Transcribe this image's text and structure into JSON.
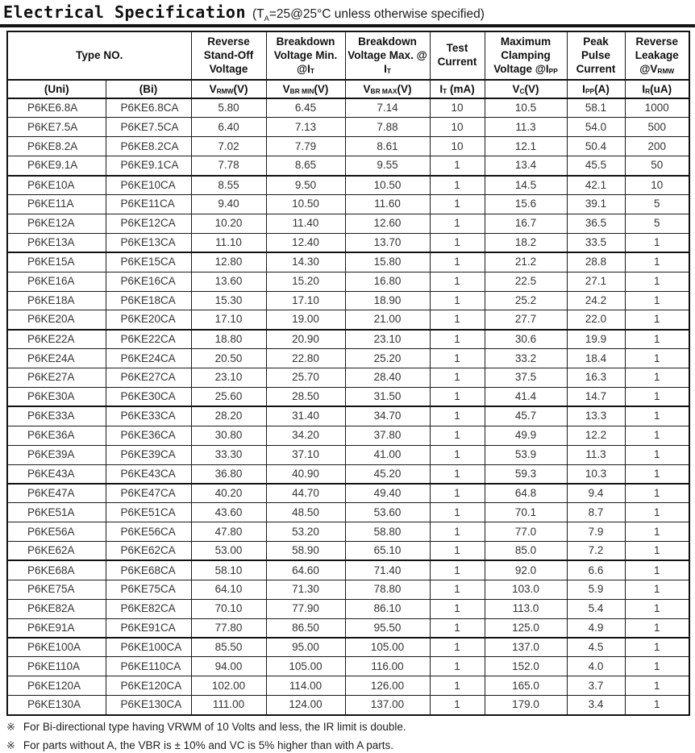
{
  "title": {
    "main": "Electrical Specification",
    "cond_pre": "(T",
    "cond_sub": "A",
    "cond_post": "=25@25°C unless otherwise specified)"
  },
  "table": {
    "headers": [
      {
        "colspan": 2,
        "segs": [
          {
            "t": "Type NO."
          }
        ]
      },
      {
        "segs": [
          {
            "t": "Reverse Stand-Off Voltage"
          }
        ]
      },
      {
        "segs": [
          {
            "t": "Breakdown Voltage Min. @I"
          },
          {
            "t": "T",
            "sub": true
          }
        ]
      },
      {
        "segs": [
          {
            "t": "Breakdown Voltage Max. @ I"
          },
          {
            "t": "T",
            "sub": true
          }
        ]
      },
      {
        "segs": [
          {
            "t": "Test Current"
          }
        ]
      },
      {
        "segs": [
          {
            "t": "Maximum Clamping Voltage @I"
          },
          {
            "t": "PP",
            "sub": true
          }
        ]
      },
      {
        "segs": [
          {
            "t": "Peak Pulse Current"
          }
        ]
      },
      {
        "segs": [
          {
            "t": "Reverse Leakage @V"
          },
          {
            "t": "RMW",
            "sub": true
          }
        ]
      }
    ],
    "subheaders": [
      {
        "segs": [
          {
            "t": "(Uni)"
          }
        ]
      },
      {
        "segs": [
          {
            "t": "(Bi)"
          }
        ]
      },
      {
        "segs": [
          {
            "t": "V"
          },
          {
            "t": "RMW",
            "sub": true
          },
          {
            "t": "(V)"
          }
        ]
      },
      {
        "segs": [
          {
            "t": "V"
          },
          {
            "t": "BR MIN",
            "sub": true
          },
          {
            "t": "(V)"
          }
        ]
      },
      {
        "segs": [
          {
            "t": "V"
          },
          {
            "t": "BR MAX",
            "sub": true
          },
          {
            "t": "(V)"
          }
        ]
      },
      {
        "segs": [
          {
            "t": "I"
          },
          {
            "t": "T",
            "sub": true
          },
          {
            "t": " (mA)"
          }
        ]
      },
      {
        "segs": [
          {
            "t": "V"
          },
          {
            "t": "C",
            "sub": true
          },
          {
            "t": "(V)"
          }
        ]
      },
      {
        "segs": [
          {
            "t": "I"
          },
          {
            "t": "PP",
            "sub": true
          },
          {
            "t": "(A)"
          }
        ]
      },
      {
        "segs": [
          {
            "t": "I"
          },
          {
            "t": "R",
            "sub": true
          },
          {
            "t": "(uA)"
          }
        ]
      }
    ],
    "groups": [
      [
        [
          "P6KE6.8A",
          "P6KE6.8CA",
          "5.80",
          "6.45",
          "7.14",
          "10",
          "10.5",
          "58.1",
          "1000"
        ],
        [
          "P6KE7.5A",
          "P6KE7.5CA",
          "6.40",
          "7.13",
          "7.88",
          "10",
          "11.3",
          "54.0",
          "500"
        ],
        [
          "P6KE8.2A",
          "P6KE8.2CA",
          "7.02",
          "7.79",
          "8.61",
          "10",
          "12.1",
          "50.4",
          "200"
        ],
        [
          "P6KE9.1A",
          "P6KE9.1CA",
          "7.78",
          "8.65",
          "9.55",
          "1",
          "13.4",
          "45.5",
          "50"
        ]
      ],
      [
        [
          "P6KE10A",
          "P6KE10CA",
          "8.55",
          "9.50",
          "10.50",
          "1",
          "14.5",
          "42.1",
          "10"
        ],
        [
          "P6KE11A",
          "P6KE11CA",
          "9.40",
          "10.50",
          "11.60",
          "1",
          "15.6",
          "39.1",
          "5"
        ],
        [
          "P6KE12A",
          "P6KE12CA",
          "10.20",
          "11.40",
          "12.60",
          "1",
          "16.7",
          "36.5",
          "5"
        ],
        [
          "P6KE13A",
          "P6KE13CA",
          "11.10",
          "12.40",
          "13.70",
          "1",
          "18.2",
          "33.5",
          "1"
        ]
      ],
      [
        [
          "P6KE15A",
          "P6KE15CA",
          "12.80",
          "14.30",
          "15.80",
          "1",
          "21.2",
          "28.8",
          "1"
        ],
        [
          "P6KE16A",
          "P6KE16CA",
          "13.60",
          "15.20",
          "16.80",
          "1",
          "22.5",
          "27.1",
          "1"
        ],
        [
          "P6KE18A",
          "P6KE18CA",
          "15.30",
          "17.10",
          "18.90",
          "1",
          "25.2",
          "24.2",
          "1"
        ],
        [
          "P6KE20A",
          "P6KE20CA",
          "17.10",
          "19.00",
          "21.00",
          "1",
          "27.7",
          "22.0",
          "1"
        ]
      ],
      [
        [
          "P6KE22A",
          "P6KE22CA",
          "18.80",
          "20.90",
          "23.10",
          "1",
          "30.6",
          "19.9",
          "1"
        ],
        [
          "P6KE24A",
          "P6KE24CA",
          "20.50",
          "22.80",
          "25.20",
          "1",
          "33.2",
          "18.4",
          "1"
        ],
        [
          "P6KE27A",
          "P6KE27CA",
          "23.10",
          "25.70",
          "28.40",
          "1",
          "37.5",
          "16.3",
          "1"
        ],
        [
          "P6KE30A",
          "P6KE30CA",
          "25.60",
          "28.50",
          "31.50",
          "1",
          "41.4",
          "14.7",
          "1"
        ]
      ],
      [
        [
          "P6KE33A",
          "P6KE33CA",
          "28.20",
          "31.40",
          "34.70",
          "1",
          "45.7",
          "13.3",
          "1"
        ],
        [
          "P6KE36A",
          "P6KE36CA",
          "30.80",
          "34.20",
          "37.80",
          "1",
          "49.9",
          "12.2",
          "1"
        ],
        [
          "P6KE39A",
          "P6KE39CA",
          "33.30",
          "37.10",
          "41.00",
          "1",
          "53.9",
          "11.3",
          "1"
        ],
        [
          "P6KE43A",
          "P6KE43CA",
          "36.80",
          "40.90",
          "45.20",
          "1",
          "59.3",
          "10.3",
          "1"
        ]
      ],
      [
        [
          "P6KE47A",
          "P6KE47CA",
          "40.20",
          "44.70",
          "49.40",
          "1",
          "64.8",
          "9.4",
          "1"
        ],
        [
          "P6KE51A",
          "P6KE51CA",
          "43.60",
          "48.50",
          "53.60",
          "1",
          "70.1",
          "8.7",
          "1"
        ],
        [
          "P6KE56A",
          "P6KE56CA",
          "47.80",
          "53.20",
          "58.80",
          "1",
          "77.0",
          "7.9",
          "1"
        ],
        [
          "P6KE62A",
          "P6KE62CA",
          "53.00",
          "58.90",
          "65.10",
          "1",
          "85.0",
          "7.2",
          "1"
        ]
      ],
      [
        [
          "P6KE68A",
          "P6KE68CA",
          "58.10",
          "64.60",
          "71.40",
          "1",
          "92.0",
          "6.6",
          "1"
        ],
        [
          "P6KE75A",
          "P6KE75CA",
          "64.10",
          "71.30",
          "78.80",
          "1",
          "103.0",
          "5.9",
          "1"
        ],
        [
          "P6KE82A",
          "P6KE82CA",
          "70.10",
          "77.90",
          "86.10",
          "1",
          "113.0",
          "5.4",
          "1"
        ],
        [
          "P6KE91A",
          "P6KE91CA",
          "77.80",
          "86.50",
          "95.50",
          "1",
          "125.0",
          "4.9",
          "1"
        ]
      ],
      [
        [
          "P6KE100A",
          "P6KE100CA",
          "85.50",
          "95.00",
          "105.00",
          "1",
          "137.0",
          "4.5",
          "1"
        ],
        [
          "P6KE110A",
          "P6KE110CA",
          "94.00",
          "105.00",
          "116.00",
          "1",
          "152.0",
          "4.0",
          "1"
        ],
        [
          "P6KE120A",
          "P6KE120CA",
          "102.00",
          "114.00",
          "126.00",
          "1",
          "165.0",
          "3.7",
          "1"
        ],
        [
          "P6KE130A",
          "P6KE130CA",
          "111.00",
          "124.00",
          "137.00",
          "1",
          "179.0",
          "3.4",
          "1"
        ]
      ]
    ]
  },
  "footnotes": [
    {
      "mark": "※",
      "text": "For Bi-directional type having VRWM of 10 Volts and less, the IR limit is double."
    },
    {
      "mark": "※",
      "text": "For parts without A, the VBR is ± 10% and VC is 5% higher than with A parts."
    }
  ]
}
